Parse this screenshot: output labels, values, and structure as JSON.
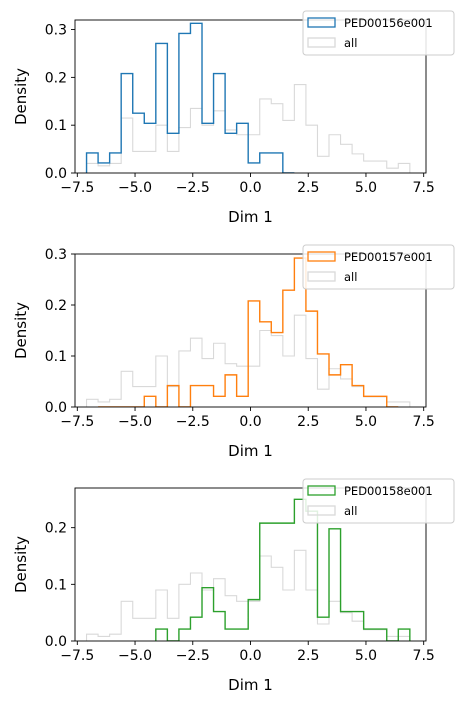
{
  "colors": {
    "all": "#d9d9d9",
    "axis": "#000000",
    "legend_border": "#cccccc",
    "series": [
      "#1f77b4",
      "#ff7f0e",
      "#2ca02c"
    ]
  },
  "chart_data": [
    {
      "type": "histogram-step",
      "xlabel": "Dim 1",
      "ylabel": "Density",
      "xlim": [
        -7.6,
        7.6
      ],
      "ylim": [
        0,
        0.32
      ],
      "xticks": [
        -7.5,
        -5.0,
        -2.5,
        0.0,
        2.5,
        5.0,
        7.5
      ],
      "xtick_labels": [
        "−7.5",
        "−5.0",
        "−2.5",
        "0.0",
        "2.5",
        "5.0",
        "7.5"
      ],
      "yticks": [
        0.0,
        0.1,
        0.2,
        0.3
      ],
      "ytick_labels": [
        "0.0",
        "0.1",
        "0.2",
        "0.3"
      ],
      "legend": {
        "position": "top-right",
        "entries": [
          "PED00156e001",
          "all"
        ]
      },
      "series": [
        {
          "name": "PED00156e001",
          "edges": [
            -7.1,
            -6.6,
            -6.1,
            -5.6,
            -5.1,
            -4.6,
            -4.1,
            -3.6,
            -3.1,
            -2.6,
            -2.1,
            -1.6,
            -1.1,
            -0.6,
            -0.1,
            0.4,
            0.9,
            1.4,
            1.9
          ],
          "values": [
            0.042,
            0.021,
            0.042,
            0.208,
            0.125,
            0.104,
            0.271,
            0.083,
            0.292,
            0.313,
            0.104,
            0.208,
            0.083,
            0.104,
            0.021,
            0.042,
            0.042,
            0.0
          ]
        },
        {
          "name": "all",
          "edges": [
            -7.1,
            -6.6,
            -6.1,
            -5.6,
            -5.1,
            -4.6,
            -4.1,
            -3.6,
            -3.1,
            -2.6,
            -2.1,
            -1.6,
            -1.1,
            -0.6,
            -0.1,
            0.4,
            0.9,
            1.4,
            1.9,
            2.4,
            2.9,
            3.4,
            3.9,
            4.4,
            4.9,
            5.4,
            5.9,
            6.4,
            6.9
          ],
          "values": [
            0.02,
            0.015,
            0.02,
            0.115,
            0.045,
            0.045,
            0.1,
            0.045,
            0.095,
            0.135,
            0.1,
            0.13,
            0.09,
            0.08,
            0.08,
            0.155,
            0.145,
            0.11,
            0.185,
            0.1,
            0.035,
            0.08,
            0.06,
            0.04,
            0.025,
            0.025,
            0.01,
            0.02
          ]
        }
      ]
    },
    {
      "type": "histogram-step",
      "xlabel": "Dim 1",
      "ylabel": "Density",
      "xlim": [
        -7.6,
        7.6
      ],
      "ylim": [
        0,
        0.3
      ],
      "xticks": [
        -7.5,
        -5.0,
        -2.5,
        0.0,
        2.5,
        5.0,
        7.5
      ],
      "xtick_labels": [
        "−7.5",
        "−5.0",
        "−2.5",
        "0.0",
        "2.5",
        "5.0",
        "7.5"
      ],
      "yticks": [
        0.0,
        0.1,
        0.2,
        0.3
      ],
      "ytick_labels": [
        "0.0",
        "0.1",
        "0.2",
        "0.3"
      ],
      "legend": {
        "position": "top-right",
        "entries": [
          "PED00157e001",
          "all"
        ]
      },
      "series": [
        {
          "name": "PED00157e001",
          "edges": [
            -6.6,
            -6.1,
            -5.6,
            -5.1,
            -4.6,
            -4.1,
            -3.6,
            -3.1,
            -2.6,
            -2.1,
            -1.6,
            -1.1,
            -0.6,
            -0.1,
            0.4,
            0.9,
            1.4,
            1.9,
            2.4,
            2.9,
            3.4,
            3.9,
            4.4,
            4.9,
            5.4,
            5.9,
            6.4
          ],
          "values": [
            0.0,
            0.0,
            0.0,
            0.0,
            0.021,
            0.0,
            0.042,
            0.0,
            0.042,
            0.042,
            0.021,
            0.063,
            0.021,
            0.208,
            0.167,
            0.146,
            0.229,
            0.292,
            0.188,
            0.104,
            0.063,
            0.083,
            0.042,
            0.021,
            0.021,
            0.0
          ]
        },
        {
          "name": "all",
          "edges": [
            -7.1,
            -6.6,
            -6.1,
            -5.6,
            -5.1,
            -4.6,
            -4.1,
            -3.6,
            -3.1,
            -2.6,
            -2.1,
            -1.6,
            -1.1,
            -0.6,
            -0.1,
            0.4,
            0.9,
            1.4,
            1.9,
            2.4,
            2.9,
            3.4,
            3.9,
            4.4,
            4.9,
            5.4,
            5.9,
            6.4,
            6.9
          ],
          "values": [
            0.015,
            0.01,
            0.015,
            0.07,
            0.04,
            0.04,
            0.1,
            0.04,
            0.11,
            0.135,
            0.095,
            0.125,
            0.085,
            0.08,
            0.08,
            0.15,
            0.14,
            0.1,
            0.18,
            0.095,
            0.035,
            0.075,
            0.055,
            0.04,
            0.02,
            0.02,
            0.01,
            0.01
          ]
        }
      ]
    },
    {
      "type": "histogram-step",
      "xlabel": "Dim 1",
      "ylabel": "Density",
      "xlim": [
        -7.6,
        7.6
      ],
      "ylim": [
        0,
        0.27
      ],
      "xticks": [
        -7.5,
        -5.0,
        -2.5,
        0.0,
        2.5,
        5.0,
        7.5
      ],
      "xtick_labels": [
        "−7.5",
        "−5.0",
        "−2.5",
        "0.0",
        "2.5",
        "5.0",
        "7.5"
      ],
      "yticks": [
        0.0,
        0.1,
        0.2
      ],
      "ytick_labels": [
        "0.0",
        "0.1",
        "0.2"
      ],
      "legend": {
        "position": "top-right",
        "entries": [
          "PED00158e001",
          "all"
        ]
      },
      "series": [
        {
          "name": "PED00158e001",
          "edges": [
            -4.1,
            -3.6,
            -3.1,
            -2.6,
            -2.1,
            -1.6,
            -1.1,
            -0.1,
            0.4,
            1.9,
            2.4,
            2.9,
            3.4,
            3.9,
            4.9,
            5.9,
            6.4,
            6.9
          ],
          "values": [
            0.021,
            0.0,
            0.021,
            0.042,
            0.094,
            0.052,
            0.021,
            0.073,
            0.208,
            0.25,
            0.229,
            0.042,
            0.198,
            0.052,
            0.021,
            0.0,
            0.021
          ]
        },
        {
          "name": "all",
          "edges": [
            -7.1,
            -6.6,
            -6.1,
            -5.6,
            -5.1,
            -4.6,
            -4.1,
            -3.6,
            -3.1,
            -2.6,
            -2.1,
            -1.6,
            -1.1,
            -0.6,
            -0.1,
            0.4,
            0.9,
            1.4,
            1.9,
            2.4,
            2.9,
            3.4,
            3.9,
            4.4,
            4.9,
            5.4,
            5.9,
            6.4,
            6.9
          ],
          "values": [
            0.012,
            0.008,
            0.012,
            0.07,
            0.04,
            0.04,
            0.09,
            0.04,
            0.1,
            0.12,
            0.09,
            0.11,
            0.08,
            0.07,
            0.07,
            0.15,
            0.13,
            0.09,
            0.16,
            0.09,
            0.03,
            0.07,
            0.05,
            0.035,
            0.02,
            0.02,
            0.008,
            0.008
          ]
        }
      ]
    }
  ]
}
